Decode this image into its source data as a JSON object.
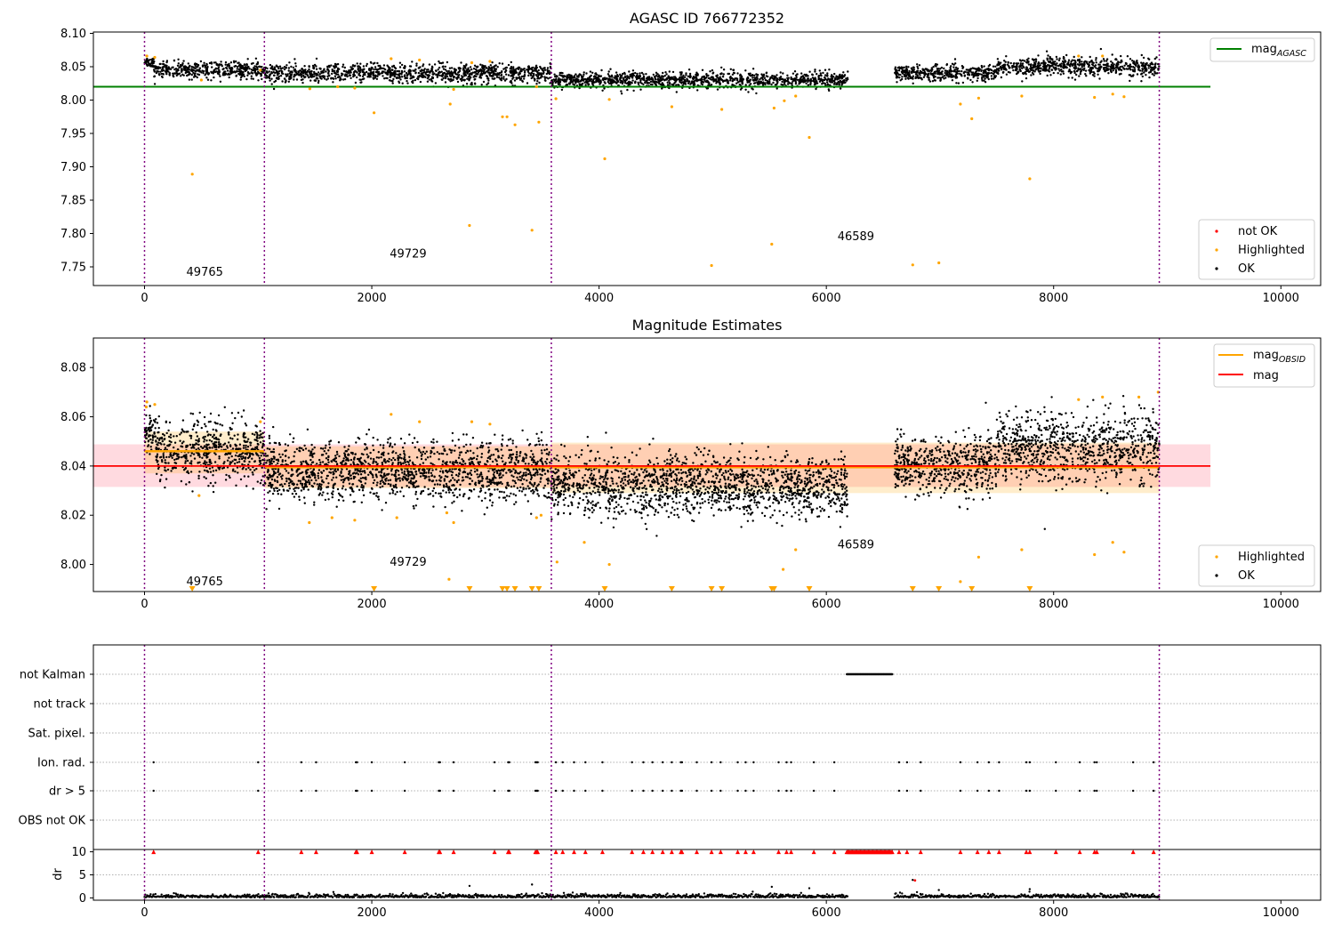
{
  "chart_data": [
    {
      "type": "scatter",
      "title": "AGASC ID 766772352",
      "xlim": [
        -450,
        10350
      ],
      "ylim": [
        7.722,
        8.102
      ],
      "xticks": [
        0,
        2000,
        4000,
        6000,
        8000,
        10000
      ],
      "yticks": [
        7.75,
        7.8,
        7.85,
        7.9,
        7.95,
        8.0,
        8.05,
        8.1
      ],
      "vlines": [
        0,
        1055,
        3580,
        8930
      ],
      "lines": [
        {
          "name": "mag_AGASC",
          "y": 8.02,
          "x": [
            -450,
            9380
          ],
          "color": "#008000"
        }
      ],
      "obsid_labels": [
        {
          "text": "49765",
          "x": 530,
          "y": 7.737
        },
        {
          "text": "49729",
          "x": 2320,
          "y": 7.764
        },
        {
          "text": "46589",
          "x": 6260,
          "y": 7.79
        }
      ],
      "ok_segments": [
        {
          "x0": 0,
          "x1": 80,
          "mean": 8.057,
          "spread": 0.004
        },
        {
          "x0": 80,
          "x1": 1055,
          "mean": 8.045,
          "spread": 0.006
        },
        {
          "x0": 1055,
          "x1": 3580,
          "mean": 8.04,
          "spread": 0.007
        },
        {
          "x0": 3580,
          "x1": 6190,
          "mean": 8.03,
          "spread": 0.006
        },
        {
          "x0": 6600,
          "x1": 7500,
          "mean": 8.04,
          "spread": 0.006
        },
        {
          "x0": 7500,
          "x1": 8930,
          "mean": 8.05,
          "spread": 0.007
        }
      ],
      "highlighted_points": [
        [
          20,
          8.066
        ],
        [
          90,
          8.064
        ],
        [
          420,
          7.889
        ],
        [
          500,
          8.03
        ],
        [
          1020,
          8.045
        ],
        [
          1455,
          8.017
        ],
        [
          1700,
          8.02
        ],
        [
          1850,
          8.018
        ],
        [
          2020,
          7.981
        ],
        [
          2170,
          8.062
        ],
        [
          2420,
          8.06
        ],
        [
          2690,
          7.994
        ],
        [
          2720,
          8.016
        ],
        [
          2860,
          7.812
        ],
        [
          2880,
          8.056
        ],
        [
          3040,
          8.058
        ],
        [
          3150,
          7.975
        ],
        [
          3190,
          7.975
        ],
        [
          3260,
          7.963
        ],
        [
          3410,
          7.805
        ],
        [
          3450,
          8.02
        ],
        [
          3470,
          7.967
        ],
        [
          3620,
          8.002
        ],
        [
          4050,
          7.912
        ],
        [
          4090,
          8.001
        ],
        [
          4640,
          7.99
        ],
        [
          4990,
          7.752
        ],
        [
          5080,
          7.986
        ],
        [
          5520,
          7.784
        ],
        [
          5540,
          7.988
        ],
        [
          5630,
          7.999
        ],
        [
          5730,
          8.006
        ],
        [
          5850,
          7.944
        ],
        [
          6760,
          7.753
        ],
        [
          6990,
          7.756
        ],
        [
          7180,
          7.994
        ],
        [
          7280,
          7.972
        ],
        [
          7340,
          8.003
        ],
        [
          7720,
          8.006
        ],
        [
          7790,
          7.882
        ],
        [
          8220,
          8.066
        ],
        [
          8360,
          8.004
        ],
        [
          8430,
          8.066
        ],
        [
          8520,
          8.009
        ],
        [
          8620,
          8.005
        ]
      ],
      "legend_upper": [
        "mag_AGASC"
      ],
      "legend_lower": [
        "not OK",
        "Highlighted",
        "OK"
      ]
    },
    {
      "type": "scatter",
      "title": "Magnitude Estimates",
      "xlim": [
        -450,
        10350
      ],
      "ylim": [
        7.989,
        8.092
      ],
      "xticks": [
        0,
        2000,
        4000,
        6000,
        8000,
        10000
      ],
      "yticks": [
        8.0,
        8.02,
        8.04,
        8.06,
        8.08
      ],
      "vlines": [
        0,
        1055,
        3580,
        8930
      ],
      "mag": {
        "value": 8.04,
        "band": [
          8.0315,
          8.0488
        ],
        "x": [
          -450,
          9380
        ],
        "color": "#ff0000",
        "band_color": "#ffb6c1"
      },
      "obsid_segments": [
        {
          "x0": 0,
          "x1": 1055,
          "value": 8.046,
          "band": [
            8.037,
            8.054
          ]
        },
        {
          "x0": 1055,
          "x1": 3580,
          "value": 8.0395,
          "band": [
            8.031,
            8.048
          ]
        },
        {
          "x0": 3580,
          "x1": 8930,
          "value": 8.0395,
          "band": [
            8.029,
            8.0495
          ]
        }
      ],
      "obsid_labels": [
        {
          "text": "49765",
          "x": 530,
          "y": 7.9915
        },
        {
          "text": "49729",
          "x": 2320,
          "y": 7.9995
        },
        {
          "text": "46589",
          "x": 6260,
          "y": 8.0065
        }
      ],
      "ok_segments": [
        {
          "x0": 0,
          "x1": 100,
          "mean": 8.053,
          "spread": 0.005
        },
        {
          "x0": 100,
          "x1": 1055,
          "mean": 8.046,
          "spread": 0.006
        },
        {
          "x0": 1055,
          "x1": 3580,
          "mean": 8.038,
          "spread": 0.006
        },
        {
          "x0": 3580,
          "x1": 6190,
          "mean": 8.032,
          "spread": 0.006
        },
        {
          "x0": 6600,
          "x1": 7500,
          "mean": 8.04,
          "spread": 0.006
        },
        {
          "x0": 7500,
          "x1": 8930,
          "mean": 8.048,
          "spread": 0.007
        }
      ],
      "highlighted_points": [
        [
          15,
          8.064
        ],
        [
          20,
          8.066
        ],
        [
          90,
          8.065
        ],
        [
          480,
          8.028
        ],
        [
          1020,
          8.058
        ],
        [
          1450,
          8.017
        ],
        [
          1650,
          8.019
        ],
        [
          1850,
          8.018
        ],
        [
          2170,
          8.061
        ],
        [
          2220,
          8.019
        ],
        [
          2420,
          8.058
        ],
        [
          2680,
          7.994
        ],
        [
          2720,
          8.017
        ],
        [
          2660,
          8.021
        ],
        [
          2880,
          8.058
        ],
        [
          3040,
          8.057
        ],
        [
          3450,
          8.019
        ],
        [
          3490,
          8.02
        ],
        [
          3630,
          8.001
        ],
        [
          3870,
          8.009
        ],
        [
          4090,
          8.0
        ],
        [
          5620,
          7.998
        ],
        [
          5730,
          8.006
        ],
        [
          7180,
          7.993
        ],
        [
          7340,
          8.003
        ],
        [
          7720,
          8.006
        ],
        [
          8220,
          8.067
        ],
        [
          8360,
          8.004
        ],
        [
          8430,
          8.068
        ],
        [
          8520,
          8.009
        ],
        [
          8620,
          8.005
        ],
        [
          8750,
          8.068
        ],
        [
          8920,
          8.07
        ]
      ],
      "lower_limit_markers_x": [
        420,
        2020,
        2860,
        3150,
        3190,
        3260,
        3410,
        3470,
        4050,
        4640,
        4990,
        5080,
        5520,
        5540,
        5850,
        6760,
        6990,
        7280,
        7790
      ],
      "legend_upper": [
        "mag_OBSID",
        "mag"
      ],
      "legend_lower": [
        "Highlighted",
        "OK"
      ]
    },
    {
      "type": "scatter",
      "title": "",
      "xlim": [
        -450,
        10350
      ],
      "xticks": [
        0,
        2000,
        4000,
        6000,
        8000,
        10000
      ],
      "vlines": [
        0,
        1055,
        3580,
        8930
      ],
      "flag_rows": [
        "not Kalman",
        "not track",
        "Sat. pixel.",
        "Ion. rad.",
        "dr > 5",
        "OBS not OK"
      ],
      "flag_events_x": [
        80,
        1000,
        1380,
        1510,
        1860,
        1870,
        2000,
        2290,
        2590,
        2600,
        2720,
        3080,
        3200,
        3210,
        3440,
        3450,
        3460,
        3620,
        3680,
        3780,
        3880,
        4030,
        4290,
        4390,
        4470,
        4560,
        4640,
        4720,
        4730,
        4860,
        4990,
        5070,
        5220,
        5290,
        5360,
        5580,
        5650,
        5690,
        5890,
        6070,
        6640,
        6710,
        6830,
        7180,
        7330,
        7430,
        7520,
        7760,
        7790,
        8020,
        8230,
        8360,
        8380,
        8700,
        8880
      ],
      "not_kalman_range": [
        6180,
        6580
      ],
      "dr_ylabel": "dr",
      "dr_ylim": [
        -0.5,
        10.5
      ],
      "dr_yticks": [
        0,
        5,
        10
      ],
      "dr_segments": [
        [
          0,
          6190
        ],
        [
          6600,
          8930
        ]
      ],
      "dr_outliers": [
        [
          2860,
          2.6
        ],
        [
          3410,
          2.9
        ],
        [
          5520,
          2.4
        ],
        [
          5850,
          2.1
        ],
        [
          6760,
          3.9
        ],
        [
          6990,
          1.7
        ],
        [
          7790,
          1.9
        ]
      ]
    }
  ]
}
